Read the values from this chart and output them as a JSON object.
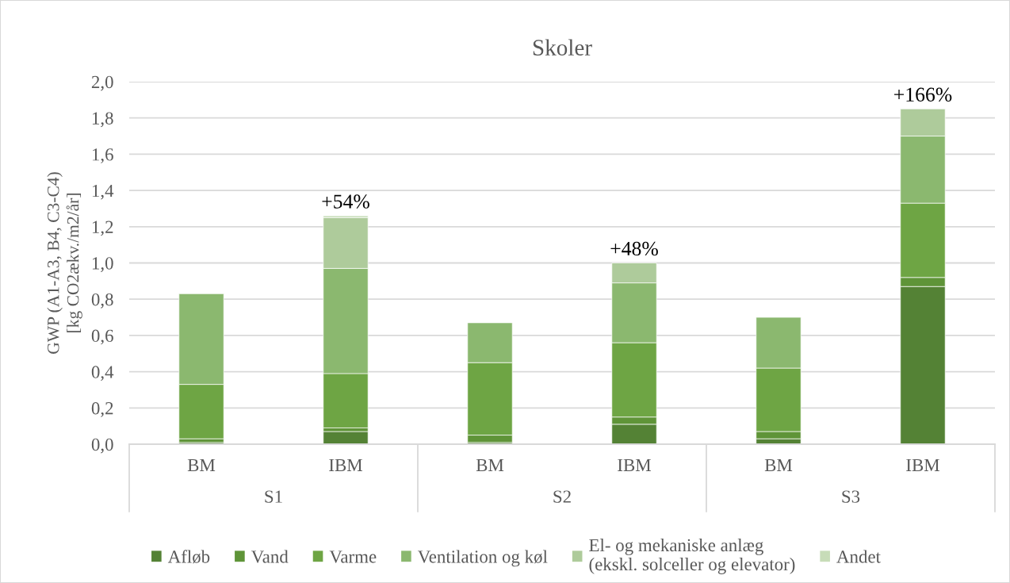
{
  "chart_data": {
    "type": "bar",
    "title": "Skoler",
    "ylabel": "GWP (A1-A3, B4, C3-C4)\n[kg CO2ækv./m2/år]",
    "categories": [
      "BM",
      "IBM",
      "BM",
      "IBM",
      "BM",
      "IBM"
    ],
    "annotations": [
      "S1",
      "S2",
      "S3",
      {
        "text": "+54%",
        "y": 1.26
      },
      {
        "text": "+48%",
        "y": 1.0
      },
      {
        "text": "+166%",
        "y": 1.85
      }
    ],
    "stacked": true,
    "series": [
      {
        "name": "Afløb",
        "color": "#548235",
        "values": [
          0.01,
          0.07,
          0.01,
          0.11,
          0.03,
          0.87
        ]
      },
      {
        "name": "Vand",
        "color": "#5f9438",
        "values": [
          0.02,
          0.02,
          0.04,
          0.04,
          0.04,
          0.05
        ]
      },
      {
        "name": "Varme",
        "color": "#6ea544",
        "values": [
          0.3,
          0.3,
          0.4,
          0.41,
          0.35,
          0.41
        ]
      },
      {
        "name": "Ventilation og køl",
        "color": "#8bb86f",
        "values": [
          0.5,
          0.58,
          0.22,
          0.33,
          0.28,
          0.37
        ]
      },
      {
        "name": "El- og mekaniske anlæg\n(ekskl. solceller og elevator)",
        "color": "#aecb9b",
        "values": [
          null,
          0.28,
          null,
          0.11,
          null,
          0.15
        ]
      },
      {
        "name": "Andet",
        "color": "#c7dcb8",
        "values": [
          null,
          0.01,
          null,
          null,
          null,
          null
        ]
      }
    ],
    "ylim": [
      0,
      2
    ],
    "yticks": [
      {
        "value": 0,
        "label": "0,0"
      },
      {
        "value": 0.2,
        "label": "0,2"
      },
      {
        "value": 0.4,
        "label": "0,4"
      },
      {
        "value": 0.6,
        "label": "0,6"
      },
      {
        "value": 0.8,
        "label": "0,8"
      },
      {
        "value": 1.0,
        "label": "1,0"
      },
      {
        "value": 1.2,
        "label": "1,2"
      },
      {
        "value": 1.4,
        "label": "1,4"
      },
      {
        "value": 1.6,
        "label": "1,6"
      },
      {
        "value": 1.8,
        "label": "1,8"
      },
      {
        "value": 2.0,
        "label": "2,0"
      }
    ],
    "grid": "y",
    "legend": "bottom"
  }
}
